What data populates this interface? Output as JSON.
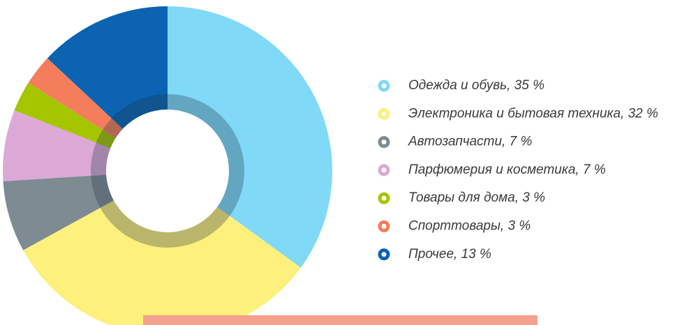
{
  "chart_data": {
    "type": "donut",
    "categories": [
      "Одежда и обувь, 35 %",
      "Электроника и бытовая техника, 32 %",
      "Автозапчасти, 7 %",
      "Парфюмерия и косметика, 7 %",
      "Товары для дома, 3 %",
      "Спорттовары, 3 %",
      "Прочее, 13 %"
    ],
    "values": [
      35,
      32,
      7,
      7,
      3,
      3,
      13
    ],
    "colors": [
      "#80d9f7",
      "#fdf07c",
      "#7e8b92",
      "#dca9d7",
      "#a5c500",
      "#f47d5b",
      "#0b63b1"
    ]
  }
}
